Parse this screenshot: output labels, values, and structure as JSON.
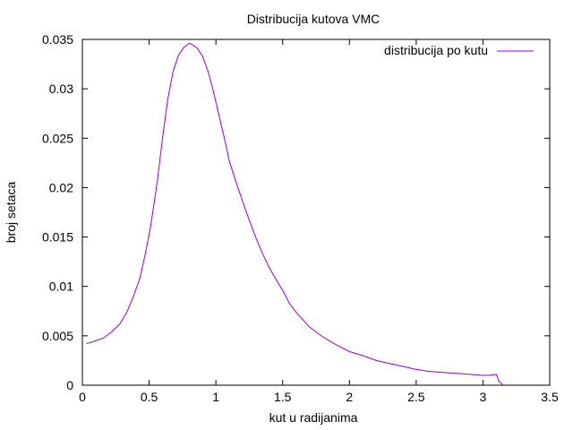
{
  "chart_data": {
    "type": "line",
    "title": "Distribucija kutova VMC",
    "xlabel": "kut u radijanima",
    "ylabel": "broj setaca",
    "xlim": [
      0,
      3.5
    ],
    "ylim": [
      0,
      0.035
    ],
    "xticks": [
      0,
      0.5,
      1,
      1.5,
      2,
      2.5,
      3,
      3.5
    ],
    "xtick_labels": [
      "0",
      "0.5",
      "1",
      "1.5",
      "2",
      "2.5",
      "3",
      "3.5"
    ],
    "yticks": [
      0,
      0.005,
      0.01,
      0.015,
      0.02,
      0.025,
      0.03,
      0.035
    ],
    "ytick_labels": [
      "0",
      "0.005",
      "0.01",
      "0.015",
      "0.02",
      "0.025",
      "0.03",
      "0.035"
    ],
    "grid": false,
    "legend": "top-right",
    "series": [
      {
        "name": "distribucija po kutu",
        "color": "#9400d3",
        "x": [
          0.03,
          0.1,
          0.16,
          0.22,
          0.28,
          0.33,
          0.38,
          0.43,
          0.47,
          0.51,
          0.56,
          0.6,
          0.64,
          0.68,
          0.72,
          0.76,
          0.8,
          0.82,
          0.86,
          0.9,
          0.94,
          0.98,
          1.02,
          1.06,
          1.1,
          1.15,
          1.2,
          1.25,
          1.3,
          1.35,
          1.4,
          1.45,
          1.5,
          1.55,
          1.6,
          1.7,
          1.8,
          1.9,
          2.0,
          2.1,
          2.2,
          2.3,
          2.4,
          2.5,
          2.6,
          2.7,
          2.8,
          2.9,
          3.0,
          3.05,
          3.1,
          3.12,
          3.15
        ],
        "y": [
          0.0042,
          0.0045,
          0.0048,
          0.0054,
          0.0062,
          0.0073,
          0.0089,
          0.0108,
          0.0132,
          0.016,
          0.0205,
          0.025,
          0.029,
          0.0318,
          0.0334,
          0.0342,
          0.0346,
          0.0345,
          0.0341,
          0.0333,
          0.0318,
          0.0298,
          0.0275,
          0.0252,
          0.0227,
          0.0206,
          0.0186,
          0.0167,
          0.0149,
          0.0133,
          0.0119,
          0.0107,
          0.0096,
          0.0083,
          0.0074,
          0.0059,
          0.0049,
          0.0041,
          0.0034,
          0.003,
          0.0025,
          0.0022,
          0.0019,
          0.0016,
          0.0014,
          0.0013,
          0.0012,
          0.0011,
          0.001,
          0.001,
          0.0011,
          0.0004,
          0.0
        ]
      }
    ]
  }
}
